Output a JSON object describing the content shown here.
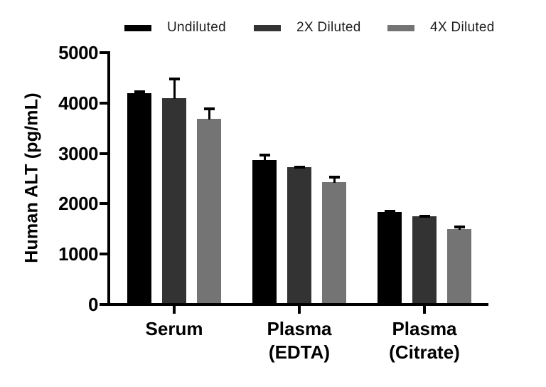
{
  "chart_data": {
    "type": "bar",
    "title": "",
    "xlabel": "",
    "ylabel": "Human ALT (pg/mL)",
    "ylim": [
      0,
      5000
    ],
    "yticks": [
      "0",
      "1000",
      "2000",
      "3000",
      "4000",
      "5000"
    ],
    "ytick_values": [
      0,
      1000,
      2000,
      3000,
      4000,
      5000
    ],
    "grid": false,
    "legend_position": "top",
    "error_bars": true,
    "categories": [
      {
        "lines": [
          "Serum",
          ""
        ]
      },
      {
        "lines": [
          "Plasma",
          "(EDTA)"
        ]
      },
      {
        "lines": [
          "Plasma",
          "(Citrate)"
        ]
      }
    ],
    "series": [
      {
        "name": "Undiluted",
        "color": "#000000",
        "values": [
          4200,
          2870,
          1840
        ],
        "errors": [
          45,
          130,
          45
        ]
      },
      {
        "name": "2X Diluted",
        "color": "#333333",
        "values": [
          4100,
          2730,
          1750
        ],
        "errors": [
          410,
          30,
          30
        ]
      },
      {
        "name": "4X Diluted",
        "color": "#747474",
        "values": [
          3690,
          2430,
          1500
        ],
        "errors": [
          220,
          125,
          70
        ]
      }
    ]
  },
  "colors": {
    "axis": "#000000",
    "error_bar": "#000000",
    "background": "#ffffff",
    "legend_text": "#1d1d1d"
  }
}
